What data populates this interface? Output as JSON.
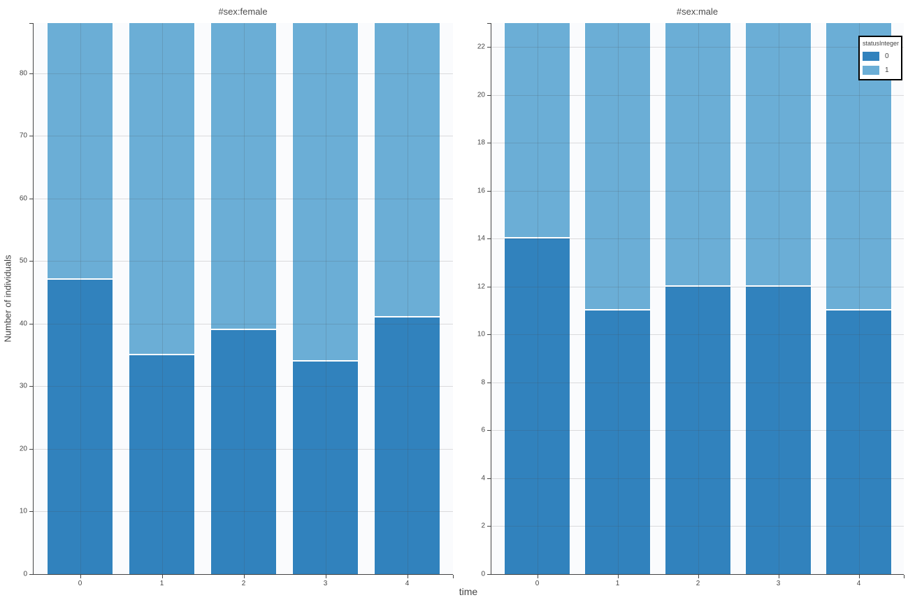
{
  "figure": {
    "background": "#ffffff",
    "plot_background": "#fafbfd",
    "xlabel": "time",
    "ylabel": "Number of individuals",
    "legend": {
      "title": "statusInteger",
      "position": "top-right",
      "items": [
        {
          "label": "0",
          "color": "#3182bd"
        },
        {
          "label": "1",
          "color": "#6baed6"
        }
      ]
    }
  },
  "chart_data": [
    {
      "type": "bar",
      "stacked": true,
      "title": "#sex:female",
      "xlabel": "time",
      "ylabel": "Number of individuals",
      "categories": [
        "0",
        "1",
        "2",
        "3",
        "4"
      ],
      "series": [
        {
          "name": "0",
          "color": "#3182bd",
          "values": [
            47,
            35,
            39,
            34,
            41
          ]
        },
        {
          "name": "1",
          "color": "#6baed6",
          "values": [
            41,
            53,
            49,
            54,
            47
          ]
        }
      ],
      "totals": [
        88,
        88,
        88,
        88,
        88
      ],
      "ylim": [
        0,
        88
      ],
      "yticks": [
        0,
        10,
        20,
        30,
        40,
        50,
        60,
        70,
        80
      ],
      "grid": true
    },
    {
      "type": "bar",
      "stacked": true,
      "title": "#sex:male",
      "xlabel": "time",
      "ylabel": "",
      "categories": [
        "0",
        "1",
        "2",
        "3",
        "4"
      ],
      "series": [
        {
          "name": "0",
          "color": "#3182bd",
          "values": [
            14,
            11,
            12,
            12,
            11
          ]
        },
        {
          "name": "1",
          "color": "#6baed6",
          "values": [
            9,
            12,
            11,
            11,
            12
          ]
        }
      ],
      "totals": [
        23,
        23,
        23,
        23,
        23
      ],
      "ylim": [
        0,
        23
      ],
      "yticks": [
        0,
        2,
        4,
        6,
        8,
        10,
        12,
        14,
        16,
        18,
        20,
        22
      ],
      "grid": true
    }
  ]
}
